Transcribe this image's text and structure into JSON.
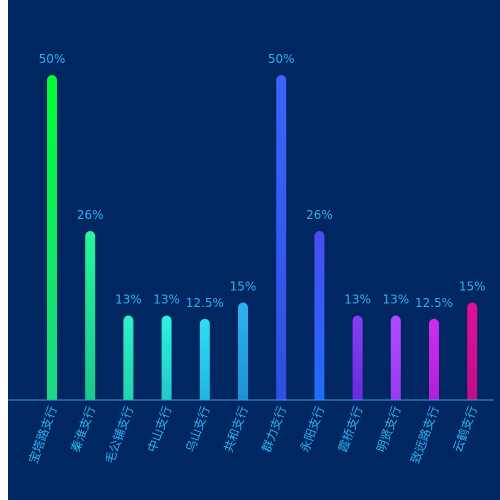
{
  "colors": {
    "background": "#012762",
    "axis_line": "#3a9fd8",
    "label_text": "#2ab4f0"
  },
  "chart_data": {
    "type": "bar",
    "title": "",
    "xlabel": "",
    "ylabel": "",
    "ylim": [
      0,
      55
    ],
    "grid": false,
    "categories": [
      "宝塔路支行",
      "秦淮支行",
      "毛公铺支行",
      "中山支行",
      "乌山支行",
      "共和支行",
      "群力支行",
      "永阳支行",
      "霞桥支行",
      "明贤支行",
      "致远路支行",
      "云鹤支行"
    ],
    "values": [
      50,
      26,
      13,
      13,
      12.5,
      15,
      50,
      26,
      13,
      13,
      12.5,
      15
    ],
    "value_labels": [
      "50%",
      "26%",
      "13%",
      "13%",
      "12.5%",
      "15%",
      "50%",
      "26%",
      "13%",
      "13%",
      "12.5%",
      "15%"
    ],
    "bar_colors": [
      [
        "#00ff33",
        "#1fd68a"
      ],
      [
        "#29f59a",
        "#1ac98c"
      ],
      [
        "#2ef0c8",
        "#22d4b0"
      ],
      [
        "#2ef0e0",
        "#22c9c9"
      ],
      [
        "#2fdcf5",
        "#1fb8e0"
      ],
      [
        "#2bb5f0",
        "#1e8fd6"
      ],
      [
        "#3b64ff",
        "#2e4fe0"
      ],
      [
        "#4a4cf0",
        "#1e6cff"
      ],
      [
        "#8a3cf5",
        "#6a2be0"
      ],
      [
        "#b04cff",
        "#9a3af0"
      ],
      [
        "#d02cf0",
        "#b020d8"
      ],
      [
        "#e0109a",
        "#c00e86"
      ]
    ]
  }
}
